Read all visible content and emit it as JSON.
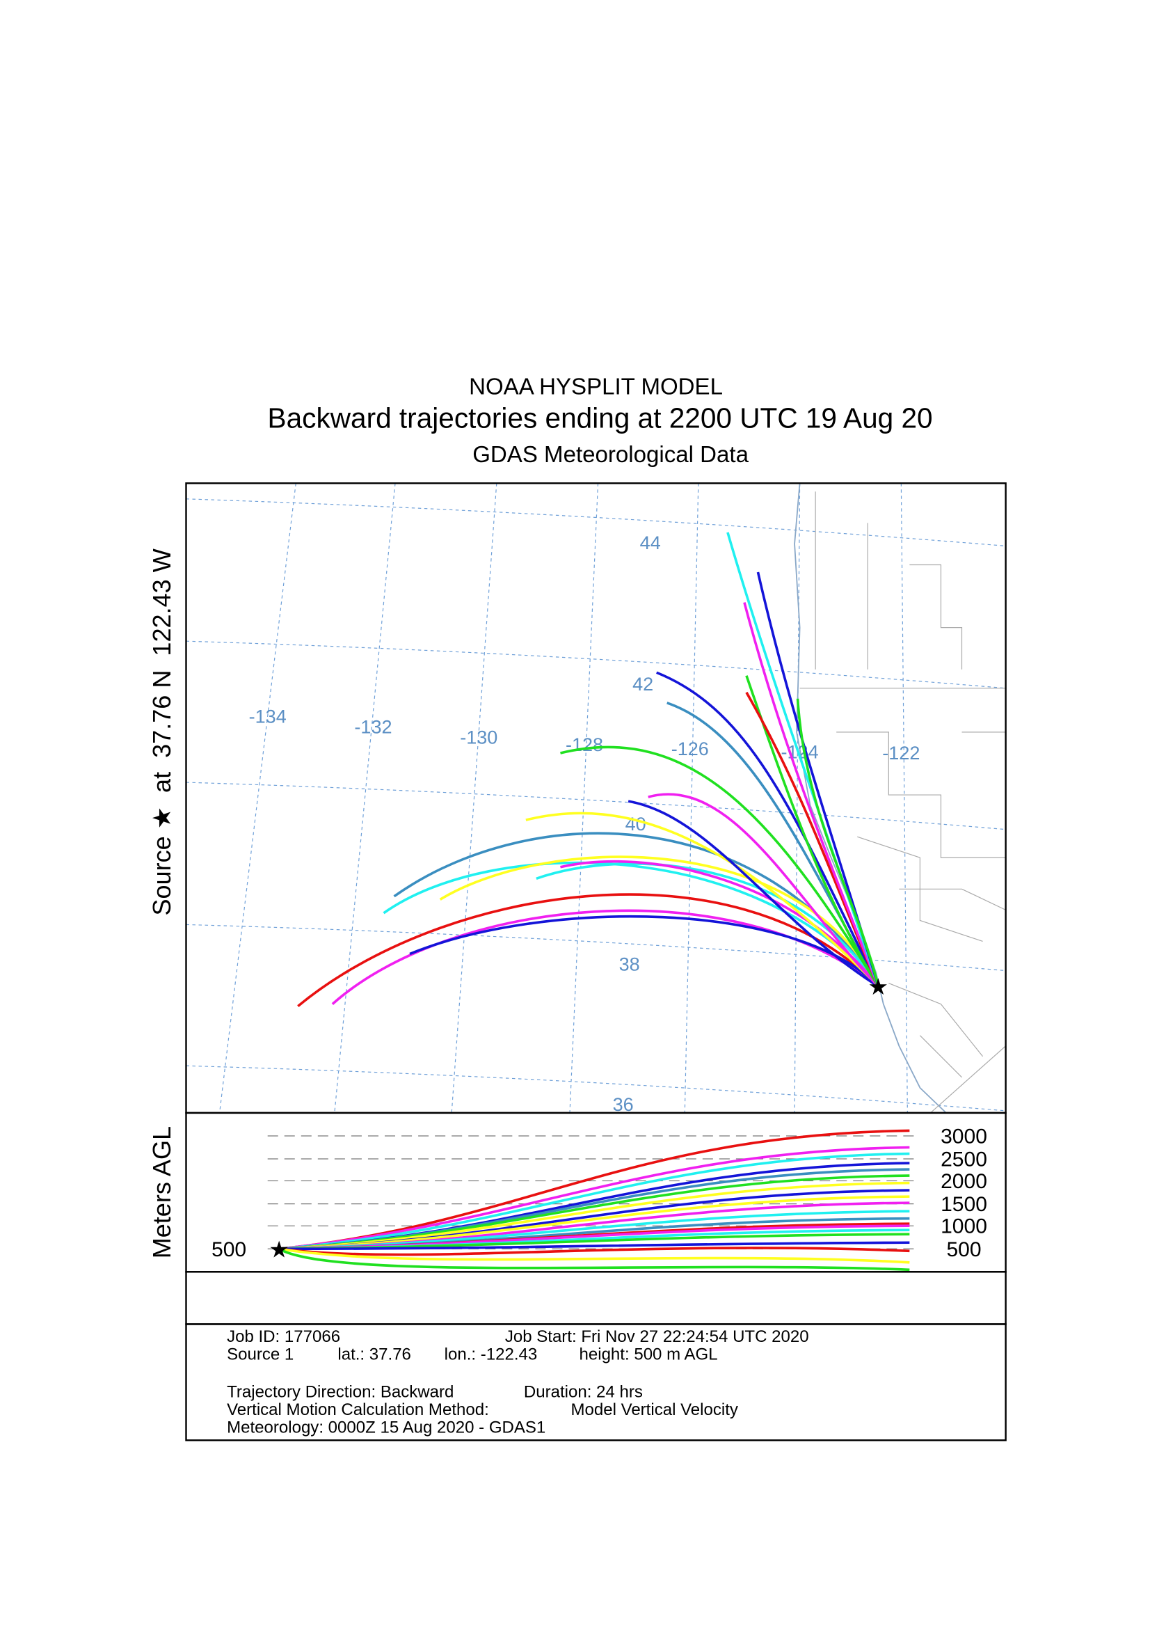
{
  "header": {
    "lines": [
      "NOAA HYSPLIT MODEL",
      "Backward trajectories ending at 2200 UTC 19 Aug 20",
      "GDAS Meteorological Data"
    ]
  },
  "map": {
    "y_label": "Source ★  at  37.76 N  122.43 W",
    "lat_labels": [
      "44",
      "42",
      "40",
      "38",
      "36"
    ],
    "lon_labels": [
      "-134",
      "-132",
      "-130",
      "-128",
      "-126",
      "-124",
      "-122"
    ]
  },
  "height_panel": {
    "y_label": "Meters AGL",
    "levels": [
      "3000",
      "2500",
      "2000",
      "1500",
      "1000",
      "500"
    ],
    "start_label": "500"
  },
  "footer": {
    "job_id": "Job ID: 177066",
    "job_start": "Job Start: Fri Nov 27 22:24:54 UTC 2020",
    "source": "Source 1",
    "lat": "lat.: 37.76",
    "lon": "lon.: -122.43",
    "height": "height: 500 m AGL",
    "direction": "Trajectory Direction: Backward",
    "duration": "Duration: 24 hrs",
    "vertical_method": "Vertical Motion Calculation Method:",
    "vertical_value": "Model Vertical Velocity",
    "meteorology": "Meteorology: 0000Z 15 Aug 2020 - GDAS1"
  }
}
